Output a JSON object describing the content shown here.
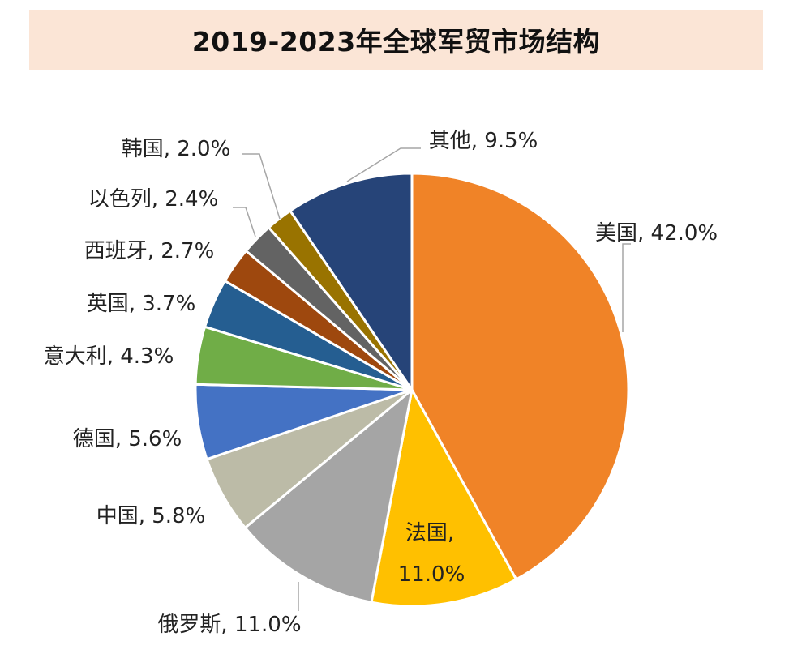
{
  "chart_data": {
    "type": "pie",
    "title": "2019-2023年全球军贸市场结构",
    "slices": [
      {
        "label": "美国",
        "value": 42.0,
        "value_text": "42.0%",
        "color": "#f08327"
      },
      {
        "label": "法国",
        "value": 11.0,
        "value_text": "11.0%",
        "color": "#ffc000"
      },
      {
        "label": "俄罗斯",
        "value": 11.0,
        "value_text": "11.0%",
        "color": "#a5a5a5"
      },
      {
        "label": "中国",
        "value": 5.8,
        "value_text": "5.8%",
        "color": "#bcbba7"
      },
      {
        "label": "德国",
        "value": 5.6,
        "value_text": "5.6%",
        "color": "#4472c4"
      },
      {
        "label": "意大利",
        "value": 4.3,
        "value_text": "4.3%",
        "color": "#70ad47"
      },
      {
        "label": "英国",
        "value": 3.7,
        "value_text": "3.7%",
        "color": "#255e91"
      },
      {
        "label": "西班牙",
        "value": 2.7,
        "value_text": "2.7%",
        "color": "#9e480e"
      },
      {
        "label": "以色列",
        "value": 2.4,
        "value_text": "2.4%",
        "color": "#636363"
      },
      {
        "label": "韩国",
        "value": 2.0,
        "value_text": "2.0%",
        "color": "#997300"
      },
      {
        "label": "其他",
        "value": 9.5,
        "value_text": "9.5%",
        "color": "#264478"
      }
    ]
  }
}
